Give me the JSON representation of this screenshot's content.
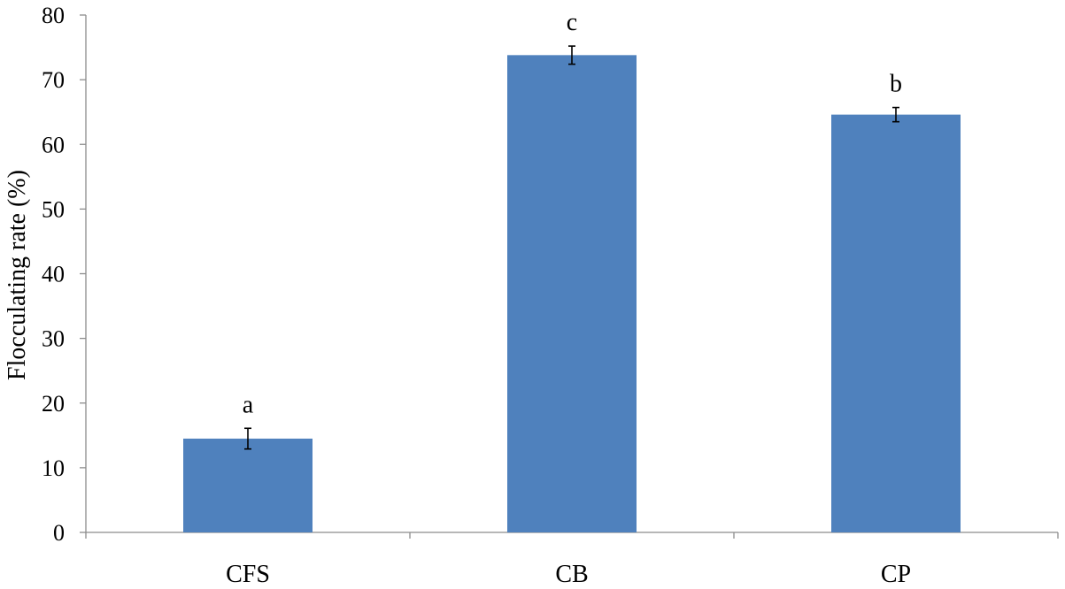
{
  "chart_data": {
    "type": "bar",
    "title": "",
    "xlabel": "",
    "ylabel": "Flocculating rate (%)",
    "ylim": [
      0,
      80
    ],
    "yticks": [
      0,
      10,
      20,
      30,
      40,
      50,
      60,
      70,
      80
    ],
    "grid": false,
    "legend": "none",
    "categories": [
      "CFS",
      "CB",
      "CP"
    ],
    "values": [
      14.5,
      73.8,
      64.6
    ],
    "errors": [
      1.6,
      1.4,
      1.1
    ],
    "significance_labels": [
      "a",
      "c",
      "b"
    ],
    "bar_color": "#4f81bd",
    "axis_color": "#8c8c8c"
  }
}
